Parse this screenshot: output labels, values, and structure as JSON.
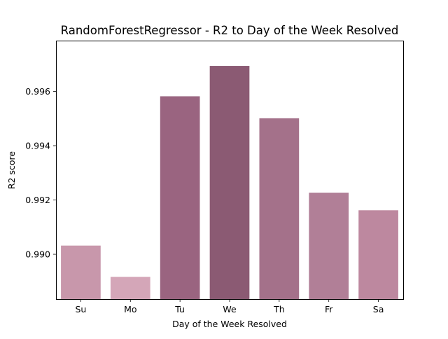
{
  "chart_data": {
    "type": "bar",
    "title": "RandomForestRegressor - R2 to Day of the Week Resolved",
    "xlabel": "Day of the Week Resolved",
    "ylabel": "R2 score",
    "categories": [
      "Su",
      "Mo",
      "Tu",
      "We",
      "Th",
      "Fr",
      "Sa"
    ],
    "values": [
      0.99032,
      0.98917,
      0.99582,
      0.99694,
      0.99501,
      0.99227,
      0.99162
    ],
    "ylim": [
      0.98835,
      0.99787
    ],
    "yticks": [
      0.99,
      0.992,
      0.994,
      0.996
    ],
    "ytick_labels": [
      "0.990",
      "0.992",
      "0.994",
      "0.996"
    ],
    "grid": false,
    "colors": [
      "#c897ab",
      "#d4a6b8",
      "#9a6480",
      "#8b5a73",
      "#a4718a",
      "#b17f97",
      "#bd889f"
    ]
  }
}
